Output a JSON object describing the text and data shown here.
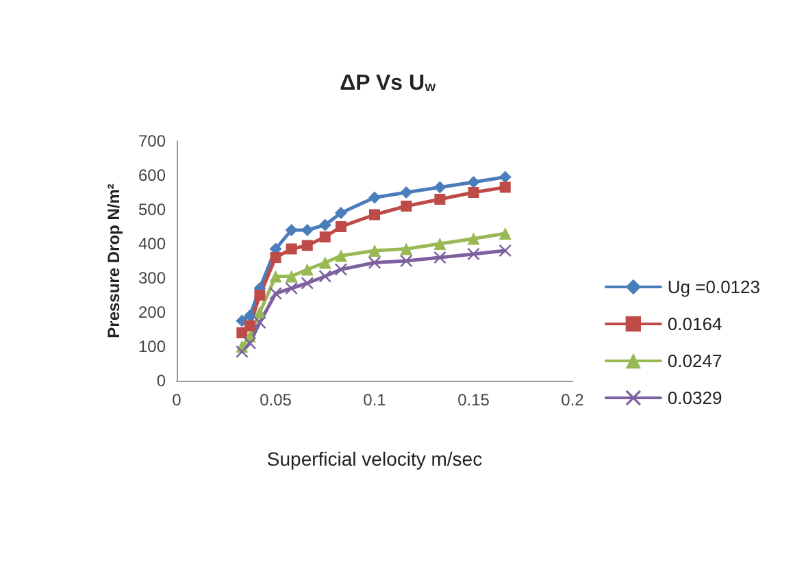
{
  "chart_data": {
    "type": "line",
    "title": "ΔP Vs U$_{w}$",
    "xlabel": "Superficial velocity m/sec",
    "ylabel": "Pressure Drop N/m²",
    "x": [
      0.033,
      0.037,
      0.042,
      0.05,
      0.058,
      0.066,
      0.075,
      0.083,
      0.1,
      0.116,
      0.133,
      0.15,
      0.166
    ],
    "xlim": [
      0,
      0.2
    ],
    "xticks": [
      0,
      0.05,
      0.1,
      0.15,
      0.2
    ],
    "ylim": [
      0,
      700
    ],
    "yticks": [
      0,
      100,
      200,
      300,
      400,
      500,
      600,
      700
    ],
    "grid": false,
    "legend": "right",
    "line_style": "solid",
    "series": [
      {
        "name": "Ug =0.0123",
        "color": "#4a7ebb",
        "marker": "diamond",
        "values": [
          175,
          190,
          270,
          385,
          440,
          440,
          455,
          490,
          535,
          550,
          565,
          580,
          595
        ]
      },
      {
        "name": "0.0164",
        "color": "#be4b48",
        "marker": "square",
        "values": [
          140,
          160,
          250,
          360,
          385,
          395,
          420,
          450,
          485,
          510,
          530,
          550,
          565
        ]
      },
      {
        "name": "0.0247",
        "color": "#98b954",
        "marker": "triangle",
        "values": [
          100,
          130,
          200,
          305,
          305,
          325,
          345,
          365,
          380,
          385,
          400,
          415,
          430
        ]
      },
      {
        "name": "0.0329",
        "color": "#7d60a0",
        "marker": "cross",
        "values": [
          85,
          110,
          170,
          255,
          270,
          285,
          305,
          325,
          345,
          350,
          360,
          370,
          380
        ]
      }
    ]
  }
}
